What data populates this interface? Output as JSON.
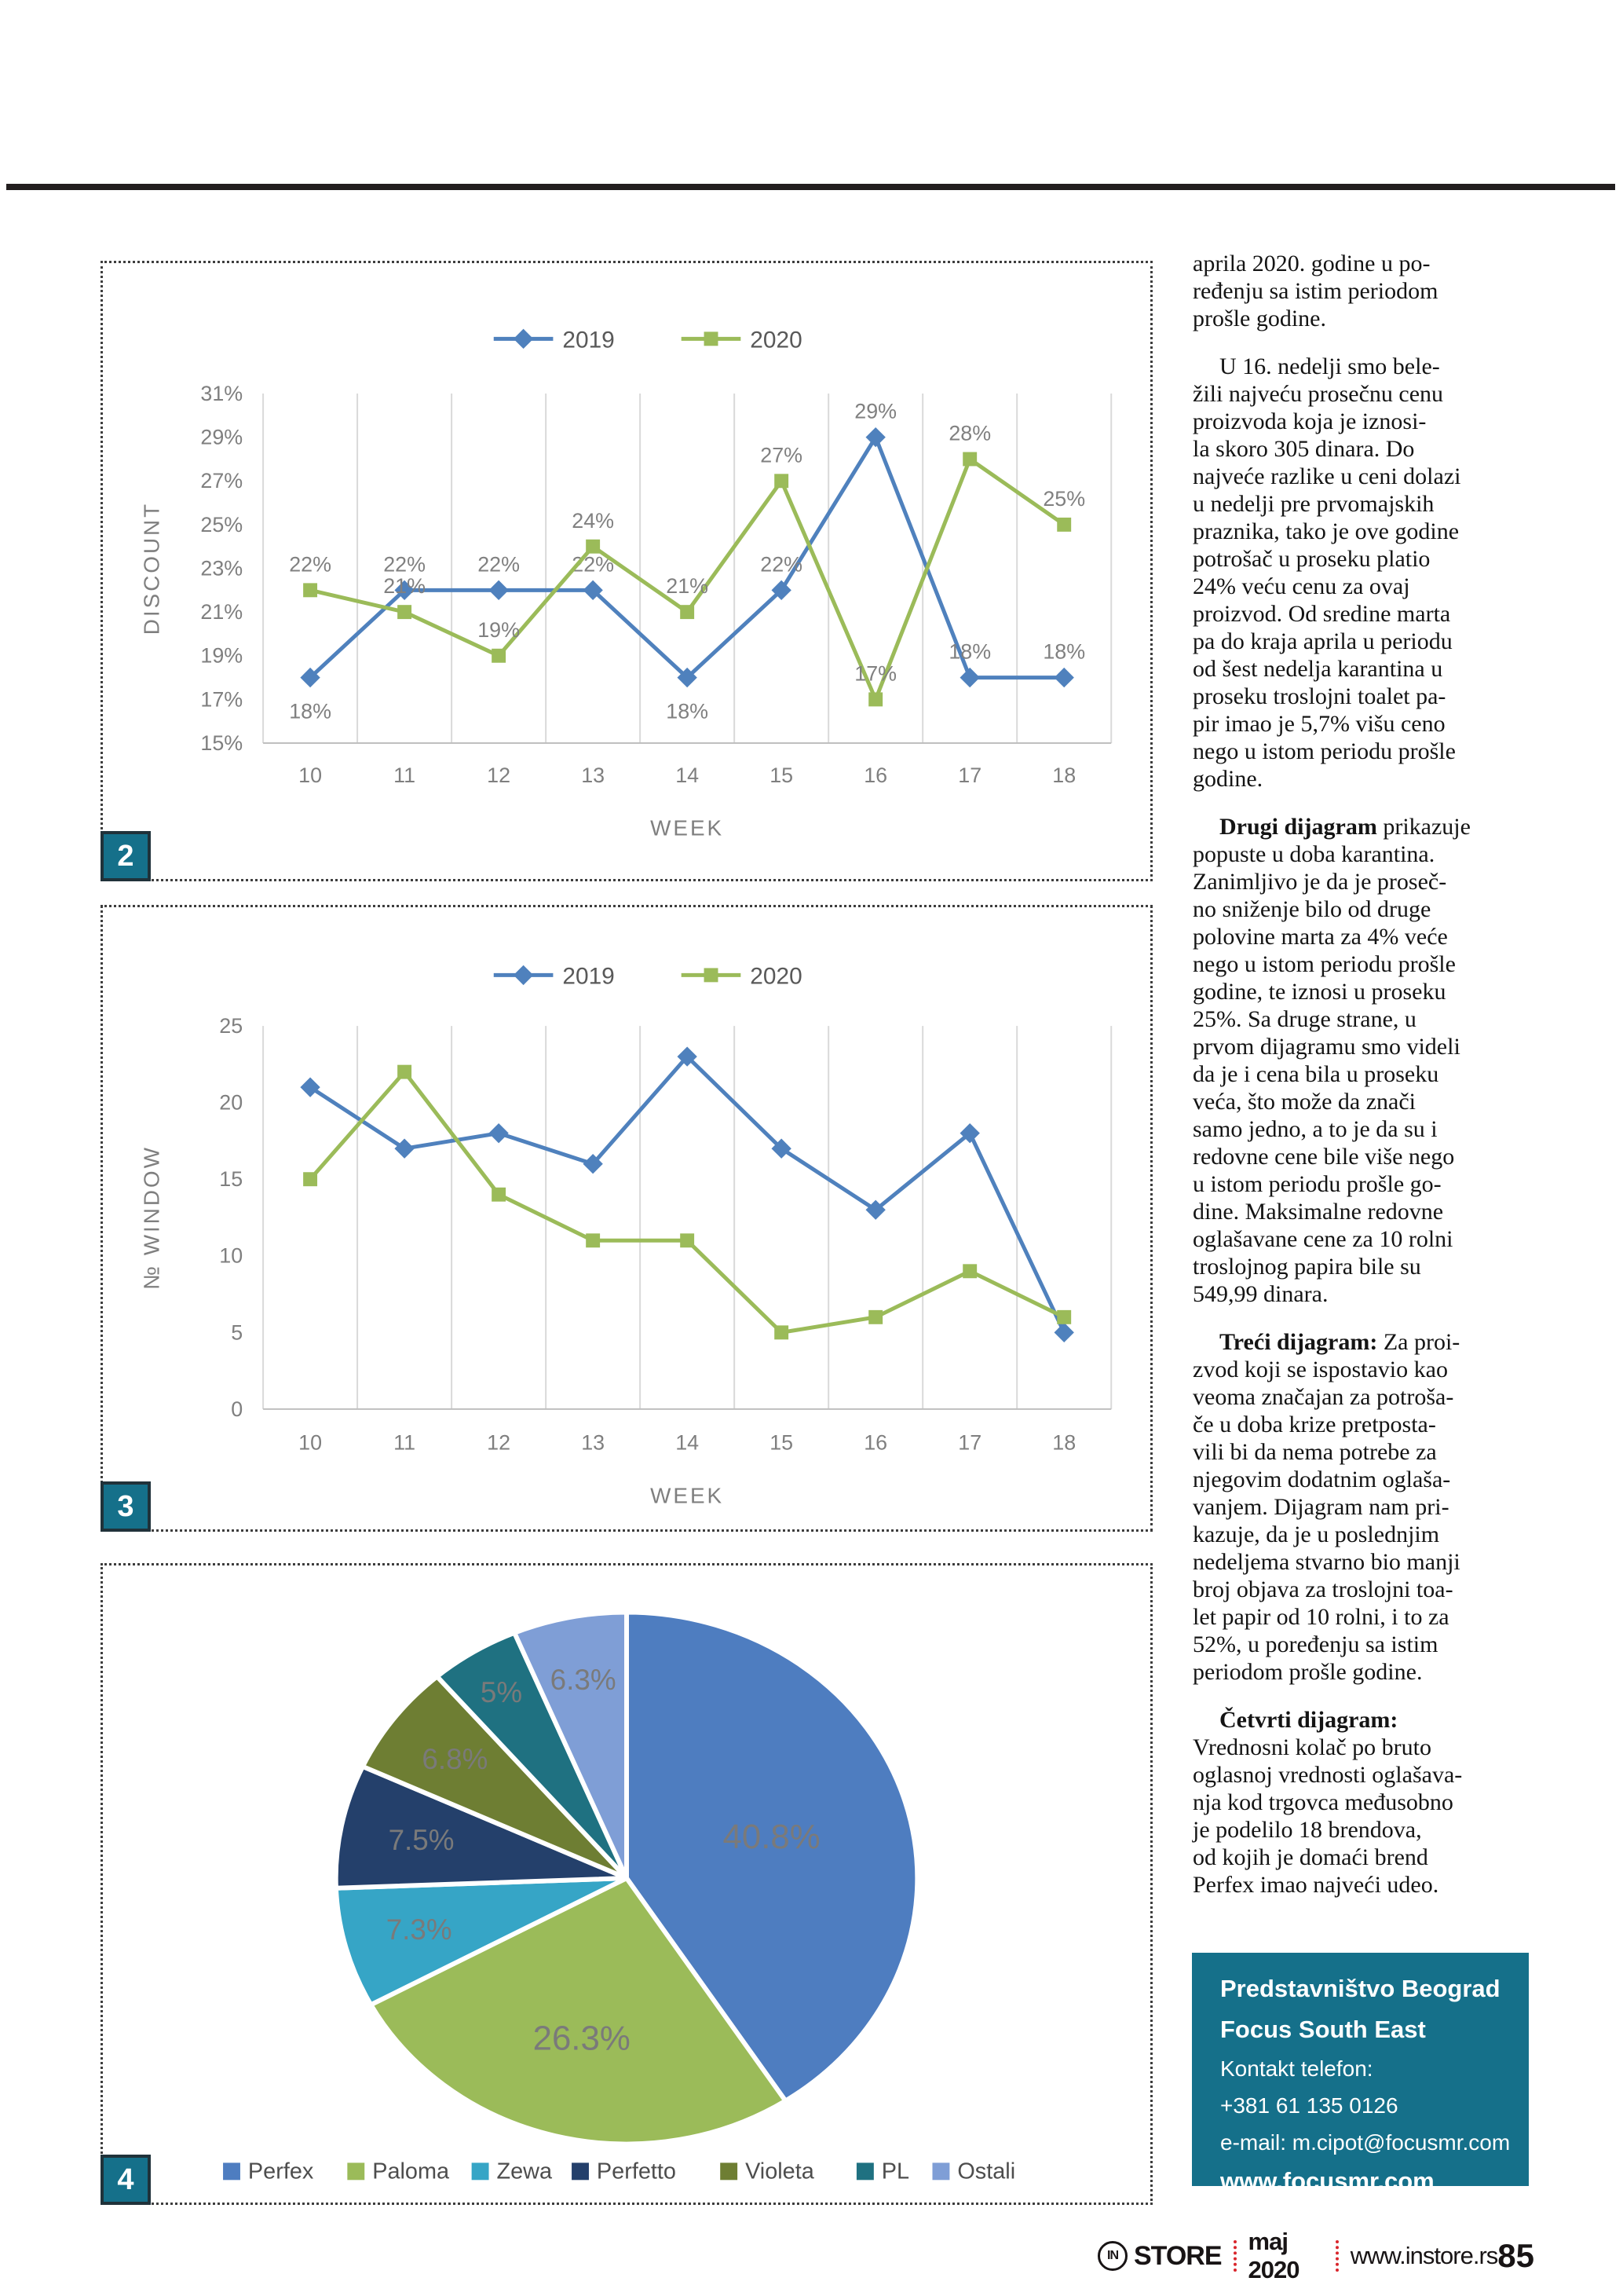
{
  "chart_data": [
    {
      "id": "discount_by_week",
      "type": "line",
      "badge": "2",
      "xlabel": "WEEK",
      "ylabel": "DISCOUNT",
      "x": [
        "10",
        "11",
        "12",
        "13",
        "14",
        "15",
        "16",
        "17",
        "18"
      ],
      "ylim": [
        15,
        31
      ],
      "ytick_values": [
        31,
        29,
        27,
        25,
        23,
        21,
        19,
        17,
        15
      ],
      "ytick_labels": [
        "31%",
        "29%",
        "27%",
        "25%",
        "23%",
        "21%",
        "19%",
        "17%",
        "15%"
      ],
      "grid": "vertical",
      "legend_position": "top",
      "series": [
        {
          "name": "2019",
          "color": "#4F81BD",
          "marker": "diamond",
          "values": [
            18,
            22,
            22,
            22,
            18,
            22,
            29,
            18,
            18
          ],
          "point_labels": [
            "18%",
            "22%",
            "22%",
            "22%",
            "18%",
            "22%",
            "29%",
            "18%",
            "18%"
          ]
        },
        {
          "name": "2020",
          "color": "#9BBB59",
          "marker": "square",
          "values": [
            22,
            21,
            19,
            24,
            21,
            27,
            17,
            28,
            25
          ],
          "point_labels": [
            "22%",
            "21%",
            "19%",
            "24%",
            "21%",
            "27%",
            "17%",
            "28%",
            "25%"
          ]
        }
      ]
    },
    {
      "id": "window_ads_by_week",
      "type": "line",
      "badge": "3",
      "xlabel": "WEEK",
      "ylabel": "№  WINDOW",
      "x": [
        "10",
        "11",
        "12",
        "13",
        "14",
        "15",
        "16",
        "17",
        "18"
      ],
      "ylim": [
        0,
        25
      ],
      "ytick_values": [
        25,
        20,
        15,
        10,
        5,
        0
      ],
      "ytick_labels": [
        "25",
        "20",
        "15",
        "10",
        "5",
        "0"
      ],
      "grid": "vertical",
      "legend_position": "top",
      "series": [
        {
          "name": "2019",
          "color": "#4F81BD",
          "marker": "diamond",
          "values": [
            21,
            17,
            18,
            16,
            23,
            17,
            13,
            18,
            5
          ]
        },
        {
          "name": "2020",
          "color": "#9BBB59",
          "marker": "square",
          "values": [
            15,
            22,
            14,
            11,
            11,
            5,
            6,
            9,
            6
          ]
        }
      ]
    },
    {
      "id": "gross_ad_value_share",
      "type": "pie",
      "badge": "4",
      "legend_position": "bottom",
      "slices": [
        {
          "label": "Perfex",
          "value": 40.8,
          "display": "40.8%",
          "color": "#4e7dc0"
        },
        {
          "label": "Paloma",
          "value": 26.3,
          "display": "26.3%",
          "color": "#9BBB59"
        },
        {
          "label": "Zewa",
          "value": 7.3,
          "display": "7.3%",
          "color": "#36a5c6"
        },
        {
          "label": "Perfetto",
          "value": 7.5,
          "display": "7.5%",
          "color": "#24406b"
        },
        {
          "label": "Violeta",
          "value": 6.8,
          "display": "6.8%",
          "color": "#6e7e33"
        },
        {
          "label": "PL",
          "value": 5.0,
          "display": "5%",
          "color": "#1f7181"
        },
        {
          "label": "Ostali",
          "value": 6.3,
          "display": "6.3%",
          "color": "#7f9ed6"
        }
      ]
    }
  ],
  "article": {
    "paragraphs": [
      {
        "lead": "",
        "text": "aprila 2020. godine u po-\nređenju sa istim periodom\nprošle godine."
      },
      {
        "lead": "",
        "text": "U 16. nedelji smo bele-\nžili najveću prosečnu cenu\nproizvoda koja je iznosi-\nla skoro 305 dinara. Do\nnajveće razlike u ceni dolazi\nu nedelji pre prvomajskih\npraznika, tako je ove godine\npotrošač u proseku platio\n24% veću cenu za ovaj\nproizvod. Od sredine marta\npa do kraja aprila u periodu\nod šest nedelja karantina u\nproseku troslojni toalet pa-\npir imao je 5,7% višu ceno\nnego u istom periodu prošle\ngodine."
      },
      {
        "lead": "Drugi dijagram",
        "text": " prikazuje\npopuste u doba karantina.\nZanimljivo je da je proseč-\nno sniženje bilo od druge\npolovine marta za 4% veće\nnego u istom periodu prošle\ngodine, te iznosi u proseku\n25%. Sa druge strane, u\nprvom dijagramu smo videli\nda je i cena bila u proseku\nveća, što može da znači\nsamo jedno, a to je da su i\nredovne cene bile više nego\nu istom periodu prošle go-\ndine. Maksimalne redovne\noglašavane cene za 10 rolni\ntroslojnog papira bile su\n549,99 dinara."
      },
      {
        "lead": "Treći dijagram:",
        "text": " Za proi-\nzvod koji se ispostavio kao\nveoma značajan za potroša-\nče u doba krize pretposta-\nvili bi da nema potrebe za\nnjegovim dodatnim oglaša-\nvanjem. Dijagram nam pri-\nkazuje, da je u poslednjim\nnedeljema stvarno bio manji\nbroj objava za troslojni toa-\nlet papir od 10 rolni, i to za\n52%, u poređenju sa istim\nperiodom prošle godine."
      },
      {
        "lead": "Četvrti dijagram:",
        "text": "\nVrednosni kolač po bruto\noglasnoj vrednosti oglašava-\nnja kod trgovca međusobno\nje podelilo 18 brendova,\nod kojih je domaći brend\nPerfex imao najveći udeo."
      }
    ]
  },
  "contact_box": {
    "background": "#15708a",
    "title1": "Predstavništvo Beograd",
    "title2": "Focus South East",
    "phone_label": "Kontakt telefon:",
    "phone": "+381 61 135 0126",
    "email": "e-mail: m.cipot@focusmr.com",
    "website": "www.focusmr.com"
  },
  "footer": {
    "logo_in": "IN",
    "logo_store": "STORE",
    "issue": "maj 2020",
    "site": "www.instore.rs",
    "page_number": "85",
    "separator_color": "#d9262c"
  }
}
